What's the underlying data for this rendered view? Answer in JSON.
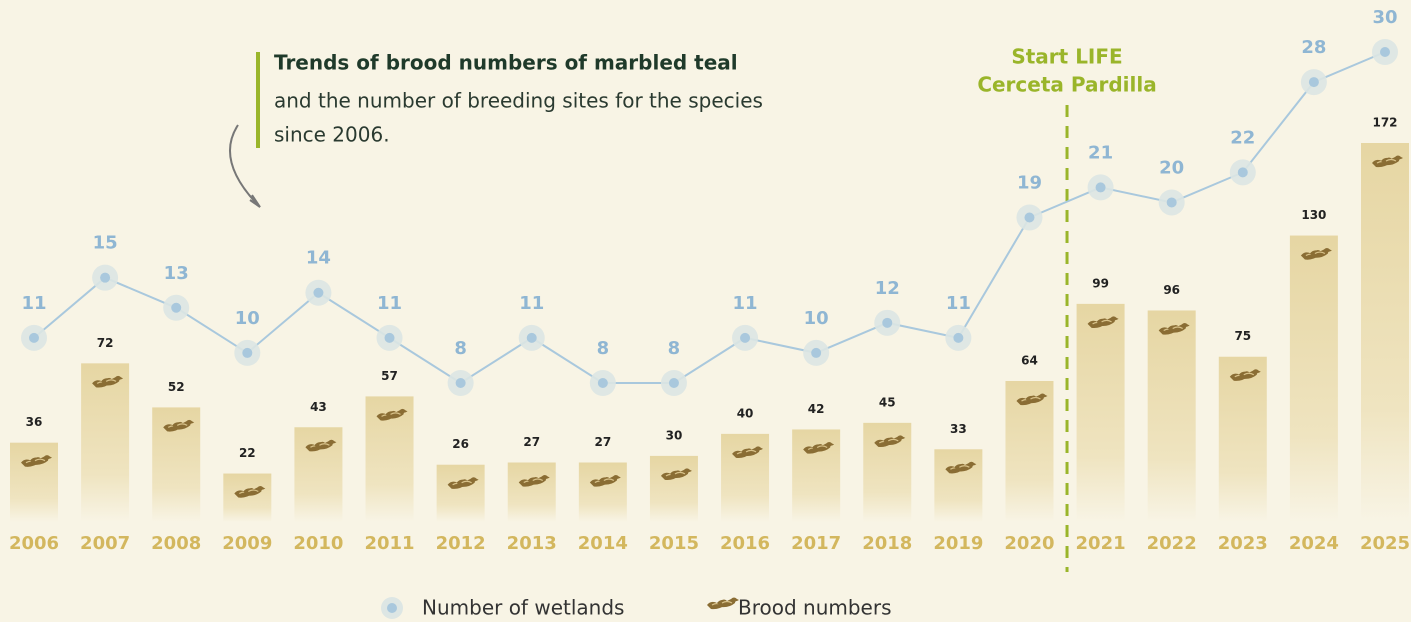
{
  "chart_data": {
    "type": "combo",
    "title": "Trends of brood numbers of marbled teal",
    "subtitle": [
      "and the number of breeding sites for the species",
      "since 2006."
    ],
    "annotation": [
      "Start LIFE",
      "Cerceta Pardilla"
    ],
    "categories": [
      "2006",
      "2007",
      "2008",
      "2009",
      "2010",
      "2011",
      "2012",
      "2013",
      "2014",
      "2015",
      "2016",
      "2017",
      "2018",
      "2019",
      "2020",
      "2021",
      "2022",
      "2023",
      "2024",
      "2025"
    ],
    "series": [
      {
        "name": "Number of wetlands",
        "type": "line",
        "color": "#a9c8dd",
        "values": [
          11,
          15,
          13,
          10,
          14,
          11,
          8,
          11,
          8,
          8,
          11,
          10,
          12,
          11,
          19,
          21,
          20,
          22,
          28,
          30
        ]
      },
      {
        "name": "Brood numbers",
        "type": "bar",
        "color": "#e6d6a3",
        "values": [
          36,
          72,
          52,
          22,
          43,
          57,
          26,
          27,
          27,
          30,
          40,
          42,
          45,
          33,
          64,
          99,
          96,
          75,
          130,
          172
        ]
      }
    ]
  }
}
